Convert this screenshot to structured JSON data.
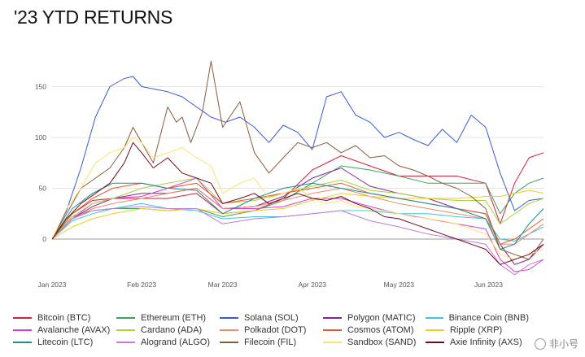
{
  "title": "'23 YTD RETURNS",
  "watermark": "非小号",
  "chart_data": {
    "type": "line",
    "title": "'23 YTD RETURNS",
    "xlabel": "",
    "ylabel": "",
    "xlim": [
      0,
      170
    ],
    "ylim": [
      -40,
      180
    ],
    "y_ticks": [
      {
        "value": 150,
        "label": "150"
      },
      {
        "value": 100,
        "label": "100"
      },
      {
        "value": 50,
        "label": "50"
      },
      {
        "value": 0,
        "label": "0"
      }
    ],
    "x_ticks": [
      {
        "day": 0,
        "label": "Jan 2023"
      },
      {
        "day": 31,
        "label": "Feb 2023"
      },
      {
        "day": 59,
        "label": "Mar 2023"
      },
      {
        "day": 90,
        "label": "Apr 2023"
      },
      {
        "day": 120,
        "label": "May 2023"
      },
      {
        "day": 151,
        "label": "Jun 2023"
      }
    ],
    "grid": true,
    "legend_position": "bottom",
    "series": [
      {
        "name": "Bitcoin (BTC)",
        "color": "#d6223a",
        "x": [
          0,
          7,
          14,
          21,
          31,
          40,
          50,
          59,
          70,
          80,
          90,
          100,
          110,
          120,
          130,
          140,
          150,
          155,
          160,
          165,
          170
        ],
        "values": [
          0,
          25,
          38,
          40,
          40,
          40,
          45,
          25,
          28,
          40,
          68,
          82,
          72,
          62,
          62,
          62,
          55,
          15,
          55,
          80,
          85
        ]
      },
      {
        "name": "Ethereum (ETH)",
        "color": "#3ca35a",
        "x": [
          0,
          7,
          14,
          21,
          31,
          40,
          50,
          59,
          70,
          80,
          90,
          100,
          110,
          120,
          130,
          140,
          150,
          155,
          160,
          165,
          170
        ],
        "values": [
          0,
          22,
          28,
          30,
          30,
          28,
          30,
          22,
          28,
          38,
          55,
          72,
          68,
          62,
          55,
          55,
          55,
          25,
          45,
          55,
          60
        ]
      },
      {
        "name": "Solana (SOL)",
        "color": "#3a5bd0",
        "x": [
          0,
          5,
          10,
          15,
          20,
          25,
          28,
          31,
          40,
          45,
          50,
          55,
          60,
          65,
          70,
          75,
          80,
          85,
          90,
          95,
          100,
          105,
          110,
          115,
          120,
          125,
          130,
          135,
          140,
          145,
          150,
          155,
          160,
          165,
          170
        ],
        "values": [
          0,
          28,
          70,
          120,
          150,
          158,
          160,
          150,
          145,
          140,
          130,
          120,
          115,
          120,
          110,
          95,
          112,
          105,
          88,
          140,
          145,
          122,
          115,
          100,
          105,
          98,
          92,
          108,
          95,
          122,
          110,
          65,
          28,
          38,
          40
        ]
      },
      {
        "name": "Polygon (MATIC)",
        "color": "#8a1f9c",
        "x": [
          0,
          7,
          14,
          21,
          31,
          40,
          50,
          59,
          70,
          80,
          90,
          100,
          110,
          120,
          130,
          140,
          150,
          155,
          160,
          165,
          170
        ],
        "values": [
          0,
          20,
          32,
          40,
          45,
          45,
          50,
          30,
          32,
          42,
          60,
          70,
          52,
          45,
          40,
          30,
          25,
          -5,
          -25,
          -20,
          -5
        ]
      },
      {
        "name": "Binance Coin (BNB)",
        "color": "#40c4e0",
        "x": [
          0,
          7,
          14,
          21,
          31,
          40,
          50,
          59,
          70,
          80,
          90,
          100,
          110,
          120,
          130,
          140,
          150,
          155,
          160,
          165,
          170
        ],
        "values": [
          0,
          18,
          25,
          30,
          35,
          30,
          28,
          20,
          22,
          22,
          25,
          28,
          28,
          25,
          25,
          22,
          20,
          0,
          -2,
          5,
          12
        ]
      },
      {
        "name": "Avalanche (AVAX)",
        "color": "#d83cd6",
        "x": [
          0,
          7,
          14,
          21,
          31,
          40,
          50,
          59,
          70,
          80,
          90,
          100,
          110,
          120,
          130,
          140,
          150,
          155,
          160,
          165,
          170
        ],
        "values": [
          0,
          20,
          35,
          40,
          42,
          50,
          60,
          30,
          30,
          32,
          40,
          40,
          32,
          25,
          20,
          15,
          10,
          -20,
          -32,
          -30,
          -20
        ]
      },
      {
        "name": "Cardano (ADA)",
        "color": "#a6d63a",
        "x": [
          0,
          7,
          14,
          21,
          31,
          40,
          50,
          59,
          70,
          80,
          90,
          100,
          110,
          120,
          130,
          140,
          150,
          155,
          160,
          165,
          170
        ],
        "values": [
          0,
          22,
          35,
          40,
          50,
          55,
          60,
          35,
          38,
          45,
          52,
          58,
          48,
          45,
          40,
          38,
          38,
          15,
          25,
          35,
          40
        ]
      },
      {
        "name": "Polkadot (DOT)",
        "color": "#f08a6c",
        "x": [
          0,
          7,
          14,
          21,
          31,
          40,
          50,
          59,
          70,
          80,
          90,
          100,
          110,
          120,
          130,
          140,
          150,
          155,
          160,
          165,
          170
        ],
        "values": [
          0,
          20,
          30,
          35,
          40,
          45,
          50,
          30,
          32,
          38,
          45,
          50,
          42,
          35,
          30,
          25,
          20,
          -5,
          -5,
          5,
          15
        ]
      },
      {
        "name": "Cosmos (ATOM)",
        "color": "#e05a28",
        "x": [
          0,
          7,
          14,
          21,
          31,
          40,
          50,
          59,
          70,
          80,
          90,
          100,
          110,
          120,
          130,
          140,
          150,
          155,
          160,
          165,
          170
        ],
        "values": [
          0,
          25,
          40,
          50,
          55,
          50,
          55,
          35,
          40,
          45,
          50,
          55,
          45,
          40,
          35,
          30,
          25,
          -5,
          0,
          10,
          20
        ]
      },
      {
        "name": "Ripple (XRP)",
        "color": "#f2cc1e",
        "x": [
          0,
          7,
          14,
          21,
          31,
          40,
          50,
          59,
          70,
          80,
          90,
          100,
          110,
          120,
          130,
          140,
          150,
          155,
          160,
          165,
          170
        ],
        "values": [
          0,
          12,
          20,
          25,
          30,
          28,
          30,
          25,
          28,
          30,
          38,
          45,
          42,
          40,
          40,
          40,
          42,
          42,
          45,
          48,
          45
        ]
      },
      {
        "name": "Litecoin (LTC)",
        "color": "#1a8c8c",
        "x": [
          0,
          7,
          14,
          21,
          31,
          40,
          50,
          59,
          70,
          80,
          90,
          100,
          110,
          120,
          130,
          140,
          150,
          155,
          160,
          165,
          170
        ],
        "values": [
          0,
          30,
          45,
          55,
          55,
          50,
          48,
          25,
          40,
          50,
          55,
          50,
          45,
          40,
          35,
          30,
          20,
          -10,
          -5,
          15,
          30
        ]
      },
      {
        "name": "Alogrand (ALGO)",
        "color": "#c07ad8",
        "x": [
          0,
          7,
          14,
          21,
          31,
          40,
          50,
          59,
          70,
          80,
          90,
          100,
          110,
          120,
          130,
          140,
          150,
          155,
          160,
          165,
          170
        ],
        "values": [
          0,
          20,
          28,
          30,
          32,
          30,
          30,
          15,
          20,
          22,
          25,
          28,
          18,
          12,
          5,
          0,
          -5,
          -25,
          -35,
          -25,
          -20
        ]
      },
      {
        "name": "Filecoin (FIL)",
        "color": "#8a5a3c",
        "x": [
          0,
          5,
          10,
          15,
          20,
          25,
          28,
          31,
          35,
          40,
          43,
          45,
          48,
          52,
          55,
          59,
          65,
          70,
          75,
          80,
          85,
          90,
          95,
          100,
          105,
          110,
          115,
          120,
          125,
          130,
          135,
          140,
          145,
          150,
          155,
          160,
          165,
          170
        ],
        "values": [
          0,
          25,
          50,
          60,
          70,
          90,
          110,
          95,
          75,
          130,
          115,
          120,
          95,
          125,
          175,
          110,
          135,
          85,
          65,
          80,
          95,
          90,
          95,
          85,
          92,
          80,
          82,
          72,
          68,
          62,
          55,
          50,
          42,
          30,
          -10,
          -15,
          -20,
          0
        ]
      },
      {
        "name": "Sandbox (SAND)",
        "color": "#fbe36a",
        "x": [
          0,
          5,
          10,
          15,
          20,
          25,
          28,
          31,
          35,
          40,
          45,
          50,
          55,
          59,
          65,
          70,
          75,
          80,
          85,
          90,
          95,
          100,
          105,
          110,
          115,
          120,
          125,
          130,
          135,
          140,
          145,
          150,
          155,
          160,
          165,
          170
        ],
        "values": [
          0,
          30,
          50,
          75,
          85,
          90,
          100,
          95,
          80,
          85,
          90,
          80,
          72,
          45,
          55,
          60,
          40,
          45,
          50,
          40,
          35,
          38,
          32,
          30,
          28,
          25,
          22,
          20,
          18,
          15,
          10,
          5,
          -15,
          -20,
          -15,
          -10
        ]
      },
      {
        "name": "Axie Infinity (AXS)",
        "color": "#6e0c1a",
        "x": [
          0,
          5,
          10,
          15,
          20,
          25,
          28,
          31,
          35,
          40,
          45,
          50,
          55,
          59,
          65,
          70,
          75,
          80,
          85,
          90,
          95,
          100,
          105,
          110,
          115,
          120,
          125,
          130,
          135,
          140,
          145,
          150,
          155,
          160,
          165,
          170
        ],
        "values": [
          0,
          20,
          35,
          45,
          55,
          75,
          95,
          85,
          70,
          80,
          65,
          60,
          55,
          35,
          40,
          45,
          35,
          40,
          45,
          40,
          38,
          42,
          35,
          30,
          22,
          20,
          15,
          10,
          5,
          0,
          -5,
          -10,
          -25,
          -20,
          -15,
          -5
        ]
      }
    ]
  }
}
